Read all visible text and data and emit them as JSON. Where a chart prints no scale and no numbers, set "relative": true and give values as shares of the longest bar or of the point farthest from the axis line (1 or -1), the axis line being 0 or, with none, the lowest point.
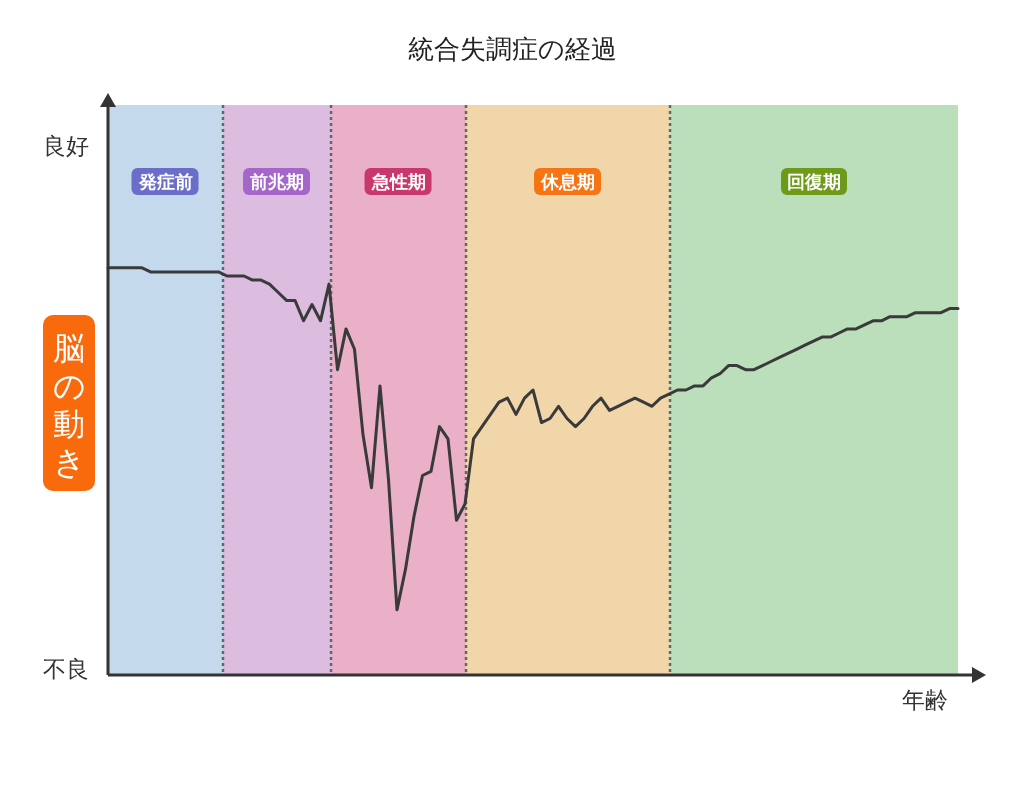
{
  "chart_data": {
    "type": "line",
    "title": "統合失調症の経過",
    "xlabel": "年齢",
    "ylabel": "脳の動き",
    "relative": true,
    "annotations": [
      "良好",
      "不良",
      "発症前",
      "前兆期",
      "急性期",
      "休息期",
      "回復期"
    ],
    "categories": [
      null,
      null,
      null,
      null,
      null,
      null,
      null,
      null,
      null,
      null,
      null,
      null,
      null,
      null,
      null,
      null,
      null,
      null,
      null,
      null,
      null,
      null,
      null,
      null,
      null,
      null,
      null,
      null,
      null,
      null,
      null,
      null,
      null,
      null,
      null,
      null,
      null,
      null,
      null,
      null,
      null,
      null,
      null,
      null,
      null,
      null,
      null,
      null,
      null,
      null,
      null,
      null,
      null,
      null,
      null,
      null,
      null,
      null,
      null,
      null,
      null,
      null,
      null,
      null,
      null,
      null,
      null,
      null,
      null,
      null,
      null,
      null,
      null,
      null,
      null,
      null,
      null,
      null,
      null,
      null,
      null,
      null,
      null,
      null,
      null,
      null,
      null,
      null,
      null,
      null,
      null,
      null,
      null,
      null,
      null,
      null,
      null,
      null,
      null,
      null,
      null
    ],
    "series": [
      {
        "color": "#3a3a3a",
        "values": [
          1.0,
          1.0,
          1.0,
          1.0,
          1.0,
          0.99,
          0.99,
          0.99,
          0.99,
          0.99,
          0.99,
          0.99,
          0.99,
          0.99,
          0.98,
          0.98,
          0.98,
          0.97,
          0.97,
          0.96,
          0.94,
          0.92,
          0.92,
          0.87,
          0.91,
          0.87,
          0.96,
          0.75,
          0.85,
          0.8,
          0.59,
          0.46,
          0.71,
          0.48,
          0.16,
          0.26,
          0.39,
          0.49,
          0.5,
          0.61,
          0.58,
          0.38,
          0.42,
          0.58,
          0.61,
          0.64,
          0.67,
          0.68,
          0.64,
          0.68,
          0.7,
          0.62,
          0.63,
          0.66,
          0.63,
          0.61,
          0.63,
          0.66,
          0.68,
          0.65,
          0.66,
          0.67,
          0.68,
          0.67,
          0.66,
          0.68,
          0.69,
          0.7,
          0.7,
          0.71,
          0.71,
          0.73,
          0.74,
          0.76,
          0.76,
          0.75,
          0.75,
          0.76,
          0.77,
          0.78,
          0.79,
          0.8,
          0.81,
          0.82,
          0.83,
          0.83,
          0.84,
          0.85,
          0.85,
          0.86,
          0.87,
          0.87,
          0.88,
          0.88,
          0.88,
          0.89,
          0.89,
          0.89,
          0.89,
          0.9,
          0.9
        ]
      }
    ]
  }
}
